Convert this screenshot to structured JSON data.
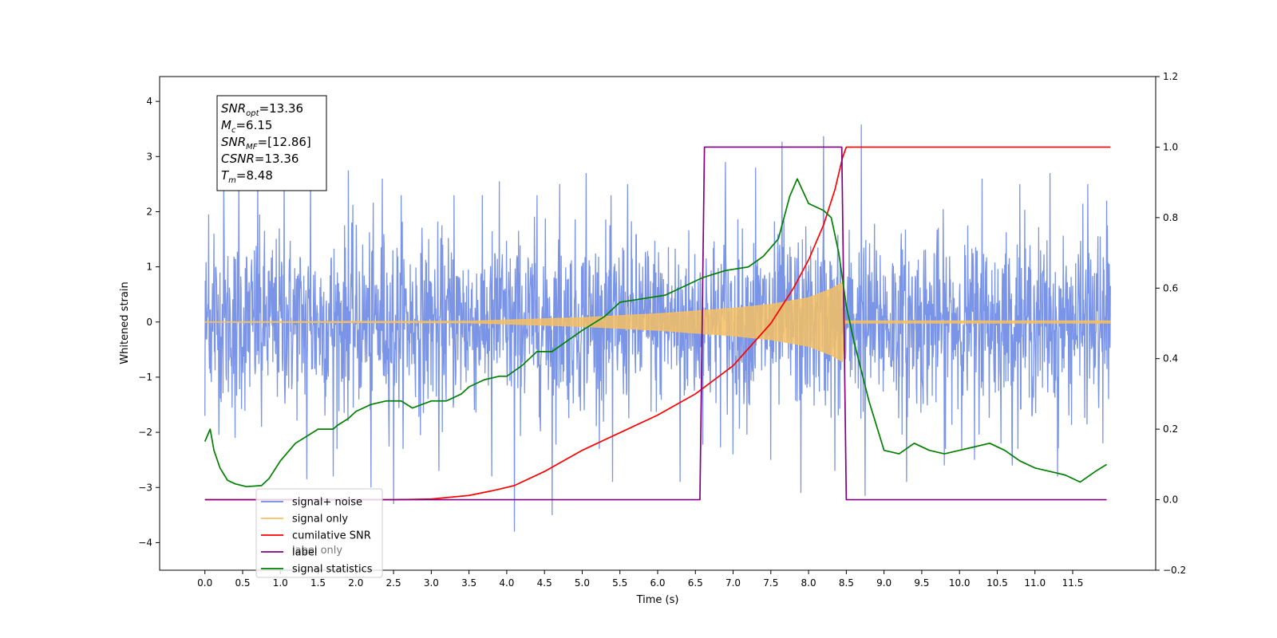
{
  "chart_data": {
    "type": "line",
    "title": "",
    "xlabel": "Time (s)",
    "ylabel": "Whitened strain",
    "y2label": "",
    "xlim": [
      -0.6,
      12.6
    ],
    "ylim": [
      -4.5,
      4.45
    ],
    "y2lim": [
      -0.2,
      1.2
    ],
    "xticks": [
      0.0,
      0.5,
      1.0,
      1.5,
      2.0,
      2.5,
      3.0,
      3.5,
      4.0,
      4.5,
      5.0,
      5.5,
      6.0,
      6.5,
      7.0,
      7.5,
      8.0,
      8.5,
      9.0,
      9.5,
      10.0,
      10.5,
      11.0,
      11.5
    ],
    "xtick_labels": [
      "0.0",
      "0.5",
      "1.0",
      "1.5",
      "2.0",
      "2.5",
      "3.0",
      "3.5",
      "4.0",
      "4.5",
      "5.0",
      "5.5",
      "6.0",
      "6.5",
      "7.0",
      "7.5",
      "8.0",
      "8.5",
      "9.0",
      "9.5",
      "10.0",
      "10.5",
      "11.0",
      "11.5"
    ],
    "yticks": [
      -4,
      -3,
      -2,
      -1,
      0,
      1,
      2,
      3,
      4
    ],
    "ytick_labels": [
      "−4",
      "−3",
      "−2",
      "−1",
      "0",
      "1",
      "2",
      "3",
      "4"
    ],
    "y2ticks": [
      -0.2,
      0.0,
      0.2,
      0.4,
      0.6,
      0.8,
      1.0,
      1.2
    ],
    "y2tick_labels": [
      "−0.2",
      "0.0",
      "0.2",
      "0.4",
      "0.6",
      "0.8",
      "1.0",
      "1.2"
    ],
    "grid": false,
    "legend_position": "lower-left",
    "legend": [
      {
        "label": "signal+ noise",
        "color": "#6b88e6"
      },
      {
        "label": "signal only",
        "color": "#f5bf63"
      },
      {
        "label": "cumilative SNR",
        "color": "#ff0000"
      },
      {
        "label": "label",
        "color": "#800080"
      },
      {
        "label": "signal statistics",
        "color": "#008000"
      }
    ],
    "obscured_legend_text": "label only",
    "annotation": {
      "lines": [
        {
          "base": "SNR",
          "sub": "opt",
          "value": "=13.36"
        },
        {
          "base": "M",
          "sub": "c",
          "value": "=6.15"
        },
        {
          "base": "SNR",
          "sub": "MF",
          "value": "=[12.86]"
        },
        {
          "base": "CSNR",
          "sub": "",
          "value": "=13.36"
        },
        {
          "base": "T",
          "sub": "m",
          "value": "=8.48"
        }
      ]
    },
    "series": [
      {
        "name": "signal+ noise",
        "axis": "left",
        "color": "#6b88e6",
        "kind": "noise",
        "x_range": [
          0.0,
          12.0
        ],
        "noise_std": 0.78,
        "peaks": [
          [
            0.05,
            1.95
          ],
          [
            0.12,
            1.6
          ],
          [
            0.25,
            2.5
          ],
          [
            0.45,
            2.7
          ],
          [
            0.7,
            2.6
          ],
          [
            1.05,
            2.7
          ],
          [
            1.4,
            2.8
          ],
          [
            1.9,
            2.75
          ],
          [
            2.35,
            2.6
          ],
          [
            2.6,
            2.3
          ],
          [
            3.3,
            2.3
          ],
          [
            3.9,
            2.55
          ],
          [
            4.4,
            2.3
          ],
          [
            4.7,
            2.5
          ],
          [
            5.05,
            2.7
          ],
          [
            5.6,
            2.5
          ],
          [
            6.3,
            2.85
          ],
          [
            6.9,
            2.9
          ],
          [
            7.3,
            2.8
          ],
          [
            7.65,
            3.27
          ],
          [
            8.2,
            3.37
          ],
          [
            8.7,
            3.58
          ],
          [
            9.3,
            2.7
          ],
          [
            9.8,
            2.6
          ],
          [
            10.3,
            2.6
          ],
          [
            10.8,
            2.5
          ],
          [
            11.2,
            2.7
          ],
          [
            11.7,
            2.5
          ],
          [
            11.95,
            2.2
          ]
        ],
        "troughs": [
          [
            0.0,
            -1.7
          ],
          [
            0.4,
            -2.1
          ],
          [
            0.75,
            -1.9
          ],
          [
            1.35,
            -2.85
          ],
          [
            1.7,
            -2.8
          ],
          [
            2.2,
            -3.0
          ],
          [
            2.5,
            -3.3
          ],
          [
            3.1,
            -2.7
          ],
          [
            3.8,
            -2.8
          ],
          [
            4.1,
            -3.8
          ],
          [
            4.6,
            -3.5
          ],
          [
            5.4,
            -2.9
          ],
          [
            6.3,
            -2.9
          ],
          [
            7.0,
            -2.4
          ],
          [
            7.5,
            -2.5
          ],
          [
            7.9,
            -3.1
          ],
          [
            8.35,
            -2.7
          ],
          [
            8.75,
            -3.15
          ],
          [
            9.3,
            -2.9
          ],
          [
            9.8,
            -2.6
          ],
          [
            10.2,
            -2.5
          ],
          [
            10.7,
            -2.6
          ],
          [
            11.3,
            -2.8
          ],
          [
            11.9,
            -2.2
          ]
        ]
      },
      {
        "name": "signal only",
        "axis": "left",
        "color": "#f5bf63",
        "kind": "chirp",
        "x_range": [
          0.0,
          12.0
        ],
        "merger_time": 8.48,
        "envelope": [
          [
            0.0,
            0.005
          ],
          [
            3.5,
            0.015
          ],
          [
            5.0,
            0.08
          ],
          [
            6.0,
            0.15
          ],
          [
            7.0,
            0.25
          ],
          [
            7.5,
            0.32
          ],
          [
            8.0,
            0.44
          ],
          [
            8.3,
            0.6
          ],
          [
            8.45,
            0.72
          ],
          [
            8.48,
            0.0
          ],
          [
            12.0,
            0.0
          ]
        ],
        "ringdown": 0.02
      },
      {
        "name": "cumilative SNR",
        "axis": "right",
        "color": "#ff0000",
        "x": [
          0.0,
          2.5,
          3.0,
          3.5,
          3.8,
          4.1,
          4.5,
          5.0,
          5.5,
          6.0,
          6.5,
          7.0,
          7.5,
          7.8,
          8.0,
          8.2,
          8.35,
          8.45,
          8.5,
          12.0
        ],
        "y": [
          0.0,
          0.0,
          0.002,
          0.012,
          0.025,
          0.04,
          0.08,
          0.14,
          0.19,
          0.24,
          0.3,
          0.38,
          0.5,
          0.6,
          0.68,
          0.78,
          0.88,
          0.97,
          1.0,
          1.0
        ]
      },
      {
        "name": "label",
        "axis": "right",
        "color": "#800080",
        "x": [
          0.0,
          6.56,
          6.62,
          8.44,
          8.5,
          11.95
        ],
        "y": [
          0.0,
          0.0,
          1.0,
          1.0,
          0.0,
          0.0
        ]
      },
      {
        "name": "signal statistics",
        "axis": "right",
        "color": "#008000",
        "x": [
          0.0,
          0.07,
          0.12,
          0.2,
          0.3,
          0.4,
          0.55,
          0.75,
          0.85,
          1.0,
          1.2,
          1.5,
          1.7,
          1.75,
          1.9,
          2.0,
          2.2,
          2.4,
          2.6,
          2.75,
          3.0,
          3.2,
          3.4,
          3.5,
          3.7,
          3.9,
          4.0,
          4.2,
          4.4,
          4.6,
          4.8,
          5.0,
          5.3,
          5.5,
          5.8,
          6.1,
          6.4,
          6.6,
          6.9,
          7.2,
          7.4,
          7.6,
          7.75,
          7.85,
          8.0,
          8.2,
          8.3,
          8.4,
          8.5,
          8.6,
          8.8,
          9.0,
          9.2,
          9.4,
          9.6,
          9.8,
          10.0,
          10.2,
          10.4,
          10.6,
          10.8,
          11.0,
          11.2,
          11.4,
          11.6,
          11.8,
          11.95
        ],
        "y": [
          0.165,
          0.2,
          0.14,
          0.09,
          0.055,
          0.045,
          0.037,
          0.04,
          0.06,
          0.11,
          0.16,
          0.2,
          0.2,
          0.21,
          0.23,
          0.25,
          0.27,
          0.28,
          0.28,
          0.26,
          0.28,
          0.28,
          0.3,
          0.32,
          0.34,
          0.35,
          0.35,
          0.38,
          0.42,
          0.42,
          0.45,
          0.48,
          0.52,
          0.56,
          0.57,
          0.58,
          0.61,
          0.63,
          0.65,
          0.66,
          0.69,
          0.74,
          0.86,
          0.91,
          0.84,
          0.82,
          0.8,
          0.7,
          0.55,
          0.45,
          0.28,
          0.14,
          0.13,
          0.16,
          0.14,
          0.13,
          0.14,
          0.15,
          0.16,
          0.14,
          0.11,
          0.09,
          0.08,
          0.07,
          0.05,
          0.08,
          0.1
        ]
      }
    ]
  }
}
